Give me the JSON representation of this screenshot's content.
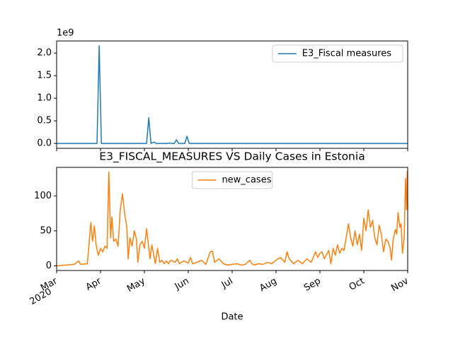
{
  "chart_data": [
    {
      "type": "line",
      "offset_label": "1e9",
      "xlim": [
        3,
        11
      ],
      "xticks": [
        {
          "value": 3,
          "label": "Mar"
        },
        {
          "value": 4,
          "label": "Apr"
        },
        {
          "value": 5,
          "label": "May"
        },
        {
          "value": 6,
          "label": "Jun"
        },
        {
          "value": 7,
          "label": "Jul"
        },
        {
          "value": 8,
          "label": "Aug"
        },
        {
          "value": 9,
          "label": "Sep"
        },
        {
          "value": 10,
          "label": "Oct"
        },
        {
          "value": 11,
          "label": "Nov"
        }
      ],
      "ylim": [
        -0.108,
        2.268
      ],
      "yticks": [
        {
          "value": 0,
          "label": "0.0"
        },
        {
          "value": 0.5,
          "label": "0.5"
        },
        {
          "value": 1,
          "label": "1.0"
        },
        {
          "value": 1.5,
          "label": "1.5"
        },
        {
          "value": 2,
          "label": "2.0"
        }
      ],
      "legend": "upper right",
      "series": [
        {
          "name": "E3_Fiscal measures",
          "color": "#1f77b4",
          "x": [
            3.0,
            3.92,
            3.97,
            4.02,
            5.05,
            5.1,
            5.15,
            5.22,
            5.27,
            5.52,
            5.58,
            5.63,
            5.68,
            5.73,
            5.78,
            5.92,
            5.97,
            6.02,
            11.0
          ],
          "values": [
            0,
            0,
            2.16,
            0,
            0,
            0.57,
            0,
            0.03,
            0,
            0,
            0.01,
            0,
            0,
            0.08,
            0,
            0,
            0.16,
            0,
            0
          ]
        }
      ]
    },
    {
      "type": "line",
      "title": "E3_FISCAL_MEASURES VS Daily Cases in Estonia",
      "xlabel": "Date",
      "year": "2020",
      "xlim": [
        3,
        11
      ],
      "xticks": [
        {
          "value": 3,
          "label": "Mar"
        },
        {
          "value": 4,
          "label": "Apr"
        },
        {
          "value": 5,
          "label": "May"
        },
        {
          "value": 6,
          "label": "Jun"
        },
        {
          "value": 7,
          "label": "Jul"
        },
        {
          "value": 8,
          "label": "Aug"
        },
        {
          "value": 9,
          "label": "Sep"
        },
        {
          "value": 10,
          "label": "Oct"
        },
        {
          "value": 11,
          "label": "Nov"
        }
      ],
      "ylim": [
        -6.7,
        140.7
      ],
      "yticks": [
        0,
        50,
        100
      ],
      "legend": "upper center",
      "series": [
        {
          "name": "new_cases",
          "color": "#ff7f0e",
          "x": [
            3.0,
            3.2,
            3.4,
            3.5,
            3.55,
            3.7,
            3.78,
            3.82,
            3.86,
            3.9,
            3.95,
            4.0,
            4.05,
            4.1,
            4.15,
            4.19,
            4.23,
            4.26,
            4.3,
            4.35,
            4.4,
            4.45,
            4.5,
            4.55,
            4.6,
            4.63,
            4.67,
            4.72,
            4.77,
            4.82,
            4.85,
            4.9,
            4.95,
            5.0,
            5.05,
            5.1,
            5.13,
            5.17,
            5.2,
            5.25,
            5.3,
            5.35,
            5.4,
            5.45,
            5.5,
            5.55,
            5.6,
            5.7,
            5.75,
            5.8,
            5.9,
            6.0,
            6.05,
            6.1,
            6.2,
            6.3,
            6.4,
            6.5,
            6.55,
            6.6,
            6.7,
            6.8,
            6.9,
            7.0,
            7.1,
            7.2,
            7.3,
            7.4,
            7.45,
            7.5,
            7.6,
            7.7,
            7.8,
            7.9,
            8.0,
            8.1,
            8.2,
            8.25,
            8.3,
            8.4,
            8.5,
            8.6,
            8.7,
            8.8,
            8.9,
            8.95,
            9.0,
            9.05,
            9.1,
            9.2,
            9.25,
            9.3,
            9.35,
            9.4,
            9.45,
            9.5,
            9.55,
            9.65,
            9.7,
            9.75,
            9.8,
            9.85,
            9.9,
            9.95,
            10.0,
            10.05,
            10.1,
            10.15,
            10.2,
            10.25,
            10.3,
            10.35,
            10.4,
            10.45,
            10.5,
            10.55,
            10.6,
            10.63,
            10.67,
            10.72,
            10.75,
            10.78,
            10.82,
            10.85,
            10.88,
            10.92,
            10.95,
            10.97,
            10.99,
            11.0
          ],
          "values": [
            0,
            1,
            2,
            7,
            2,
            3,
            62,
            35,
            57,
            30,
            15,
            25,
            20,
            28,
            25,
            134,
            40,
            70,
            35,
            38,
            28,
            80,
            103,
            75,
            55,
            10,
            40,
            28,
            50,
            38,
            5,
            30,
            35,
            25,
            53,
            25,
            10,
            30,
            20,
            3,
            25,
            5,
            8,
            3,
            7,
            3,
            8,
            5,
            10,
            3,
            7,
            4,
            12,
            3,
            5,
            8,
            2,
            20,
            21,
            5,
            10,
            3,
            1,
            2,
            3,
            1,
            2,
            8,
            3,
            1,
            3,
            2,
            5,
            3,
            8,
            12,
            5,
            20,
            10,
            3,
            8,
            3,
            10,
            5,
            20,
            12,
            18,
            20,
            10,
            22,
            3,
            25,
            15,
            30,
            18,
            25,
            22,
            60,
            40,
            28,
            50,
            30,
            45,
            22,
            68,
            50,
            80,
            55,
            65,
            40,
            30,
            58,
            45,
            20,
            38,
            35,
            25,
            8,
            38,
            52,
            45,
            76,
            55,
            60,
            18,
            40,
            125,
            80,
            135,
            80
          ]
        }
      ]
    }
  ]
}
